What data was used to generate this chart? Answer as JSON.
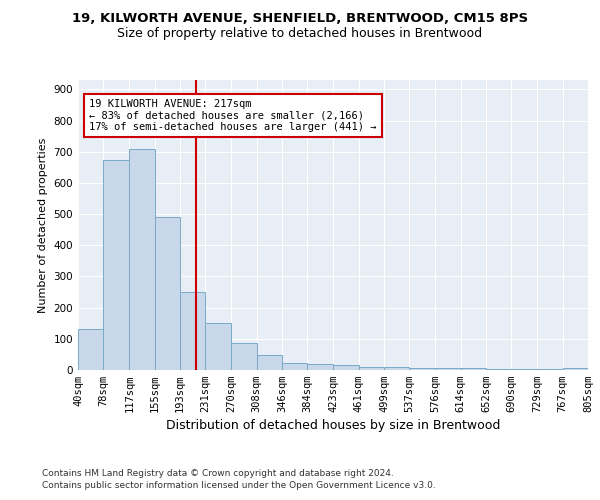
{
  "title1": "19, KILWORTH AVENUE, SHENFIELD, BRENTWOOD, CM15 8PS",
  "title2": "Size of property relative to detached houses in Brentwood",
  "xlabel": "Distribution of detached houses by size in Brentwood",
  "ylabel": "Number of detached properties",
  "footnote1": "Contains HM Land Registry data © Crown copyright and database right 2024.",
  "footnote2": "Contains public sector information licensed under the Open Government Licence v3.0.",
  "bin_edges": [
    40,
    78,
    117,
    155,
    193,
    231,
    270,
    308,
    346,
    384,
    423,
    461,
    499,
    537,
    576,
    614,
    652,
    690,
    729,
    767,
    805
  ],
  "bar_heights": [
    130,
    675,
    710,
    492,
    250,
    150,
    85,
    48,
    22,
    18,
    17,
    10,
    10,
    5,
    5,
    5,
    3,
    3,
    3,
    5
  ],
  "bar_color": "#c8d8ea",
  "bar_edge_color": "#7aaac8",
  "property_size": 217,
  "vline_color": "#cc0000",
  "annotation_text": "19 KILWORTH AVENUE: 217sqm\n← 83% of detached houses are smaller (2,166)\n17% of semi-detached houses are larger (441) →",
  "annotation_box_color": "#ffffff",
  "annotation_box_edge_color": "#cc0000",
  "ylim": [
    0,
    930
  ],
  "yticks": [
    0,
    100,
    200,
    300,
    400,
    500,
    600,
    700,
    800,
    900
  ],
  "bg_color": "#e8eef5",
  "grid_color": "#ffffff",
  "fig_bg_color": "#ffffff",
  "title1_fontsize": 9.5,
  "title2_fontsize": 9,
  "xlabel_fontsize": 9,
  "ylabel_fontsize": 8,
  "tick_fontsize": 7.5,
  "annotation_fontsize": 7.5,
  "footnote_fontsize": 6.5
}
